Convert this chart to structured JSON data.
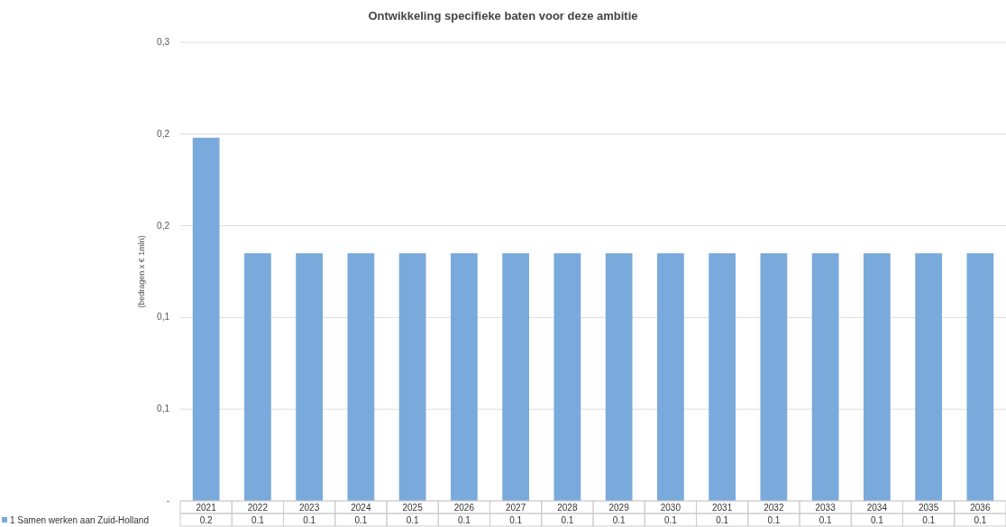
{
  "chart_data": {
    "type": "bar",
    "title": "Ontwikkeling specifieke baten voor deze ambitie",
    "ylabel": "(bedragen x € 1mln)",
    "categories": [
      "2021",
      "2022",
      "2023",
      "2024",
      "2025",
      "2026",
      "2027",
      "2028",
      "2029",
      "2030",
      "2031",
      "2032",
      "2033",
      "2034",
      "2035",
      "2036"
    ],
    "series": [
      {
        "name": "1 Samen werken aan Zuid-Holland",
        "color": "#7aaadc",
        "values": [
          0.198,
          0.135,
          0.135,
          0.135,
          0.135,
          0.135,
          0.135,
          0.135,
          0.135,
          0.135,
          0.135,
          0.135,
          0.135,
          0.135,
          0.135,
          0.135
        ],
        "value_labels": [
          "0.2",
          "0.1",
          "0.1",
          "0.1",
          "0.1",
          "0.1",
          "0.1",
          "0.1",
          "0.1",
          "0.1",
          "0.1",
          "0.1",
          "0.1",
          "0.1",
          "0.1",
          "0.1"
        ]
      }
    ],
    "ylim": [
      0,
      0.25
    ],
    "yticks": [
      {
        "value": 0,
        "label": "-"
      },
      {
        "value": 0.05,
        "label": "0,1"
      },
      {
        "value": 0.1,
        "label": "0,1"
      },
      {
        "value": 0.15,
        "label": "0,2"
      },
      {
        "value": 0.2,
        "label": "0,2"
      },
      {
        "value": 0.25,
        "label": "0,3"
      }
    ],
    "grid": "y",
    "legend": "bottom"
  }
}
